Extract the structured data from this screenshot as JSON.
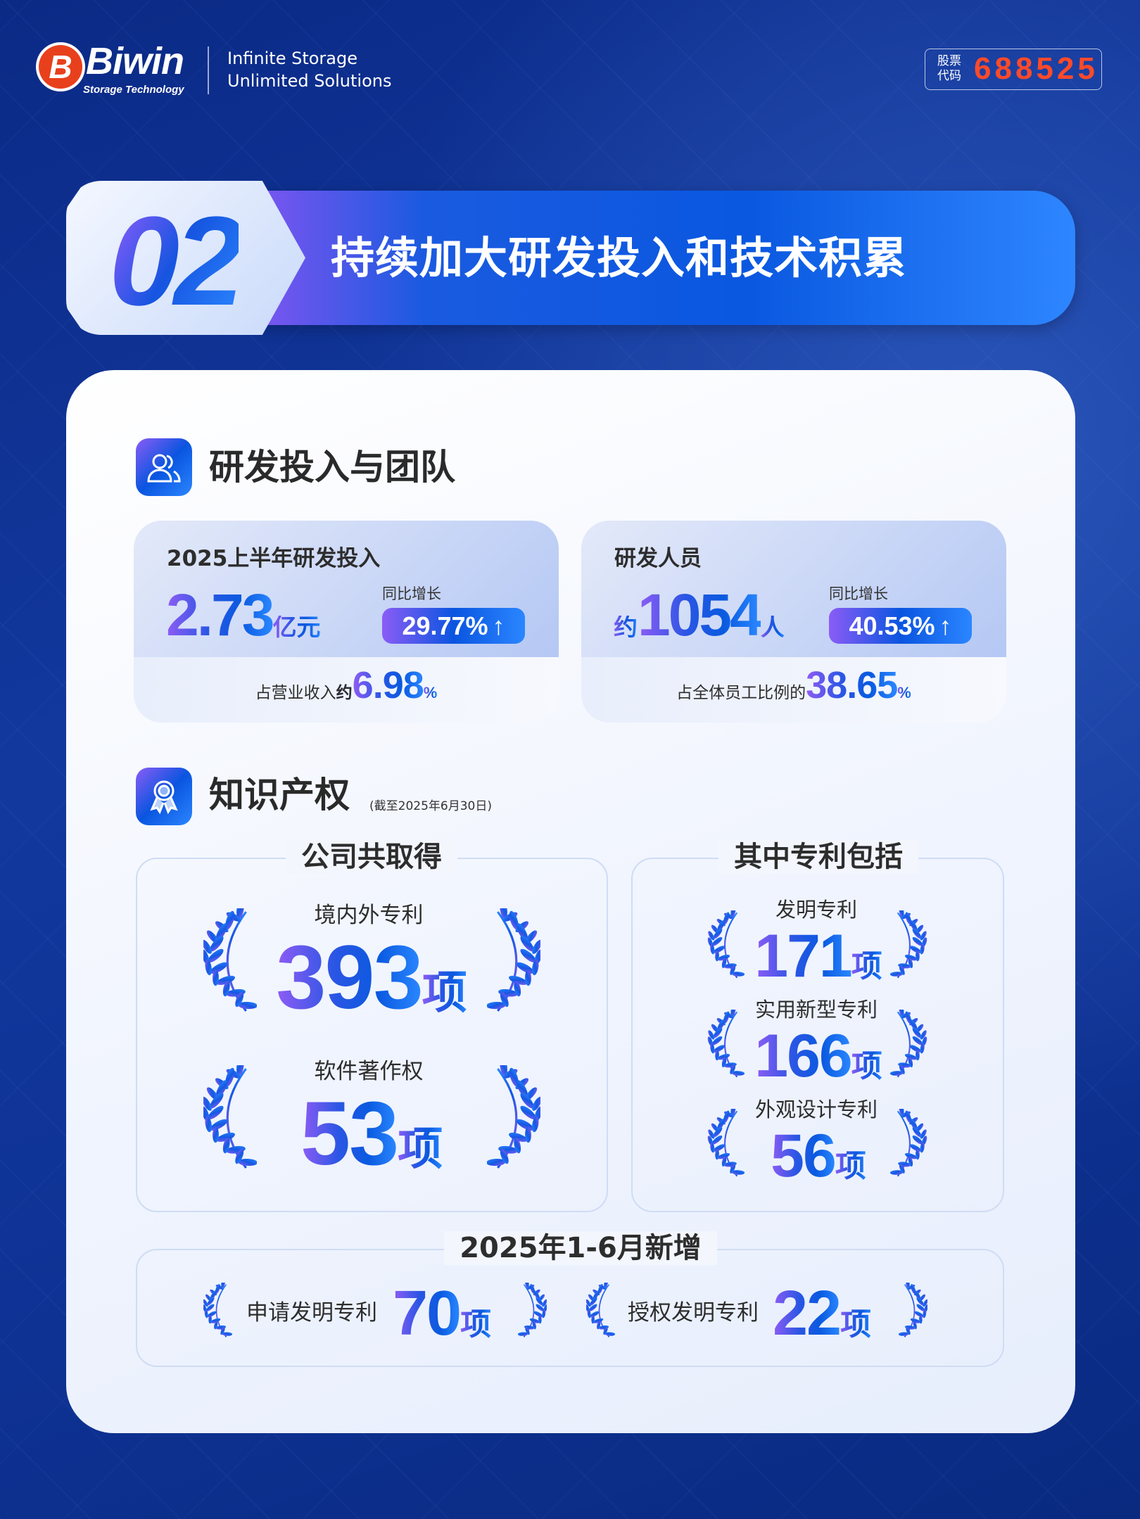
{
  "header": {
    "logo_mark": "B",
    "logo_word": "Biwin",
    "logo_sub": "Storage Technology",
    "slogan_1": "Infinite Storage",
    "slogan_2": "Unlimited Solutions",
    "stock_label_1": "股票",
    "stock_label_2": "代码",
    "stock_code": "688525"
  },
  "banner": {
    "number": "02",
    "title": "持续加大研发投入和技术积累"
  },
  "rd": {
    "section_title": "研发投入与团队",
    "section_icon": "team-icon",
    "investment": {
      "title": "2025上半年研发投入",
      "value": "2.73",
      "unit": "亿元",
      "yoy_label": "同比增长",
      "yoy_value": "29.77%",
      "ratio_label": "占营业收入",
      "ratio_prefix": "约",
      "ratio_value": "6.98",
      "ratio_unit": "%"
    },
    "staff": {
      "title": "研发人员",
      "prefix": "约",
      "value": "1054",
      "unit": "人",
      "yoy_label": "同比增长",
      "yoy_value": "40.53%",
      "ratio_label": "占全体员工比例的",
      "ratio_value": "38.65",
      "ratio_unit": "%"
    }
  },
  "ip": {
    "section_title": "知识产权",
    "section_note": "(截至2025年6月30日)",
    "section_icon": "award-ribbon-icon",
    "total": {
      "title": "公司共取得",
      "items": [
        {
          "label": "境内外专利",
          "value": "393",
          "unit": "项"
        },
        {
          "label": "软件著作权",
          "value": "53",
          "unit": "项"
        }
      ]
    },
    "patents": {
      "title": "其中专利包括",
      "items": [
        {
          "label": "发明专利",
          "value": "171",
          "unit": "项"
        },
        {
          "label": "实用新型专利",
          "value": "166",
          "unit": "项"
        },
        {
          "label": "外观设计专利",
          "value": "56",
          "unit": "项"
        }
      ]
    },
    "new": {
      "title": "2025年1-6月新增",
      "items": [
        {
          "label": "申请发明专利",
          "value": "70",
          "unit": "项"
        },
        {
          "label": "授权发明专利",
          "value": "22",
          "unit": "项"
        }
      ]
    }
  },
  "colors": {
    "background": "#0e3294",
    "accent_blue": "#0a58e0",
    "accent_purple": "#8b5cf6",
    "stock_red": "#ff4a2a"
  }
}
